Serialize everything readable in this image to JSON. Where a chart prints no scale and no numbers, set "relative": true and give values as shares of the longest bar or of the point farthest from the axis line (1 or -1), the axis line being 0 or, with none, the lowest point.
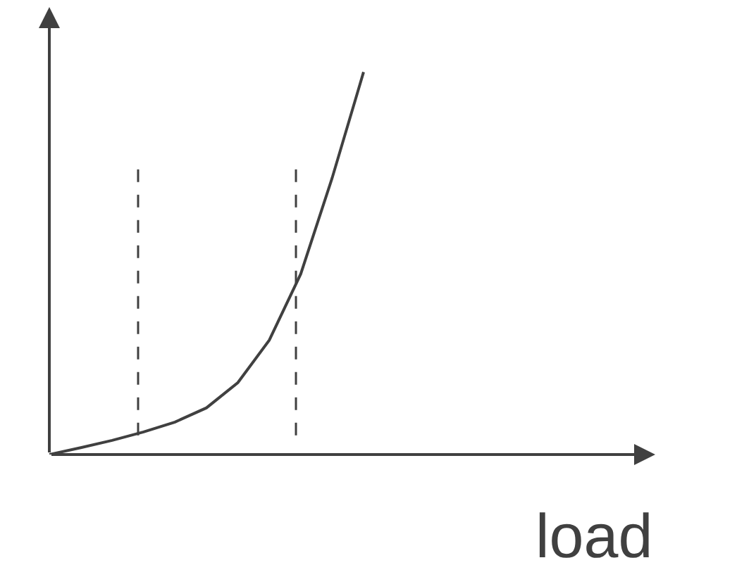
{
  "chart_data": {
    "type": "line",
    "relative": true,
    "xlabel": "load",
    "categories": [
      null,
      null,
      null,
      null,
      null,
      null,
      null,
      null,
      null,
      null,
      null
    ],
    "series": [
      {
        "color": "#404040",
        "values": [
          0,
          0.018,
          0.037,
          0.059,
          0.085,
          0.122,
          0.188,
          0.299,
          0.472,
          0.723,
          1
        ]
      }
    ],
    "marker": "none",
    "line_style": "solid"
  }
}
